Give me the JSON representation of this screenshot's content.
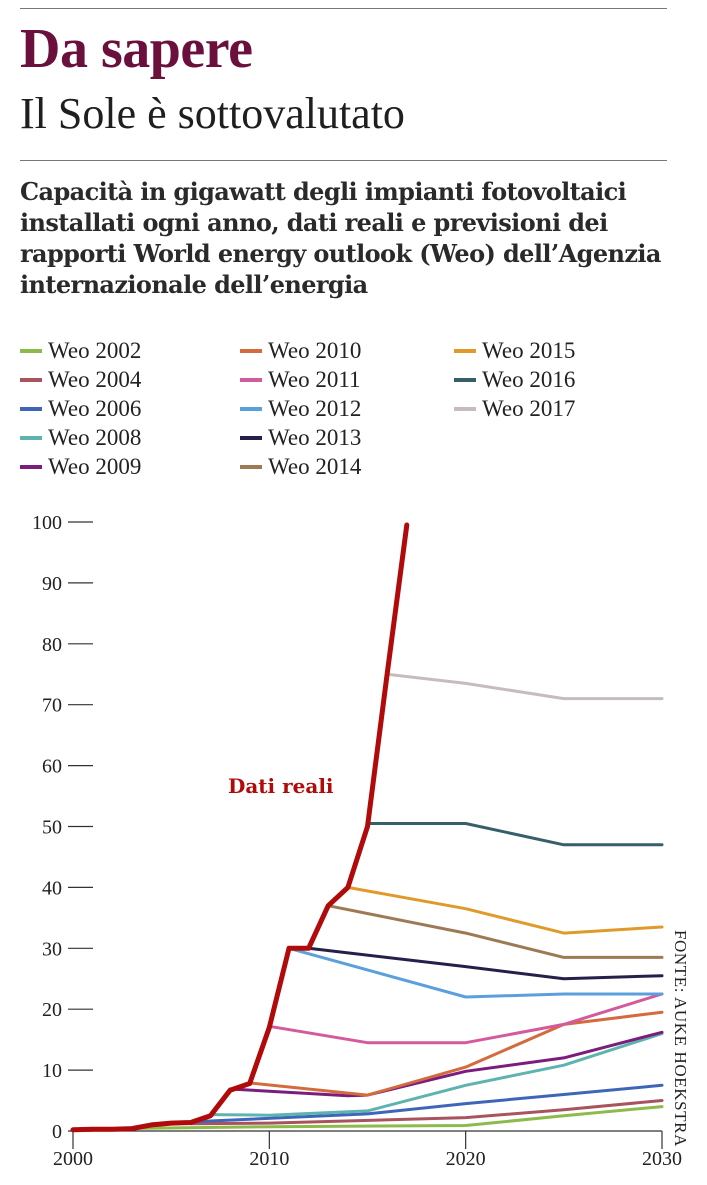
{
  "header": {
    "kicker": "Da sapere",
    "subtitle": "Il Sole è sottovalutato"
  },
  "source": "FONTE: AUKE HOEKSTRA",
  "colors": {
    "kicker": "#6b0f3c",
    "actual": "#b00a0a"
  },
  "chart_data": {
    "type": "line",
    "title": "Capacità in gigawatt degli impianti fotovoltaici installati ogni anno, dati reali e previsioni dei rapporti World energy outlook (Weo) dell’Agenzia internazionale dell’energia",
    "xlabel": "",
    "ylabel": "",
    "xlim": [
      2000,
      2030
    ],
    "ylim": [
      0,
      100
    ],
    "x_ticks": [
      2000,
      2010,
      2020,
      2030
    ],
    "y_ticks": [
      0,
      10,
      20,
      30,
      40,
      50,
      60,
      70,
      80,
      90,
      100
    ],
    "grid": false,
    "legend_position": "top",
    "annotation": "Dati reali",
    "actual": {
      "name": "Dati reali",
      "color": "#b00a0a",
      "points": [
        [
          2000,
          0.2
        ],
        [
          2001,
          0.3
        ],
        [
          2002,
          0.3
        ],
        [
          2003,
          0.4
        ],
        [
          2004,
          1.0
        ],
        [
          2005,
          1.3
        ],
        [
          2006,
          1.4
        ],
        [
          2007,
          2.5
        ],
        [
          2008,
          6.7
        ],
        [
          2009,
          7.8
        ],
        [
          2010,
          17.0
        ],
        [
          2011,
          30.0
        ],
        [
          2012,
          30.0
        ],
        [
          2013,
          37.0
        ],
        [
          2014,
          40.0
        ],
        [
          2015,
          50.0
        ],
        [
          2016,
          75.0
        ],
        [
          2017,
          99.5
        ]
      ]
    },
    "series": [
      {
        "name": "Weo 2002",
        "color": "#8dbb4b",
        "points": [
          [
            2000,
            0.3
          ],
          [
            2010,
            0.7
          ],
          [
            2020,
            0.9
          ],
          [
            2025,
            2.5
          ],
          [
            2030,
            4.0
          ]
        ]
      },
      {
        "name": "Weo 2004",
        "color": "#a9535f",
        "points": [
          [
            2006,
            1.2
          ],
          [
            2010,
            1.3
          ],
          [
            2020,
            2.2
          ],
          [
            2025,
            3.5
          ],
          [
            2030,
            5.0
          ]
        ]
      },
      {
        "name": "Weo 2006",
        "color": "#3e66b8",
        "points": [
          [
            2006,
            1.5
          ],
          [
            2015,
            2.8
          ],
          [
            2020,
            4.5
          ],
          [
            2025,
            6.0
          ],
          [
            2030,
            7.5
          ]
        ]
      },
      {
        "name": "Weo 2008",
        "color": "#5fb3ae",
        "points": [
          [
            2007,
            2.7
          ],
          [
            2010,
            2.6
          ],
          [
            2015,
            3.3
          ],
          [
            2020,
            7.5
          ],
          [
            2025,
            10.8
          ],
          [
            2030,
            16.0
          ]
        ]
      },
      {
        "name": "Weo 2009",
        "color": "#7a1d7d",
        "points": [
          [
            2008,
            6.9
          ],
          [
            2014,
            5.8
          ],
          [
            2015,
            5.9
          ],
          [
            2020,
            9.8
          ],
          [
            2025,
            12.0
          ],
          [
            2030,
            16.2
          ]
        ]
      },
      {
        "name": "Weo 2010",
        "color": "#d36b3d",
        "points": [
          [
            2009,
            7.9
          ],
          [
            2015,
            5.9
          ],
          [
            2020,
            10.5
          ],
          [
            2025,
            17.5
          ],
          [
            2030,
            19.5
          ]
        ]
      },
      {
        "name": "Weo 2011",
        "color": "#d35a9c",
        "points": [
          [
            2010,
            17.2
          ],
          [
            2015,
            14.5
          ],
          [
            2020,
            14.5
          ],
          [
            2025,
            17.5
          ],
          [
            2030,
            22.5
          ]
        ]
      },
      {
        "name": "Weo 2012",
        "color": "#5ba0dd",
        "points": [
          [
            2011,
            30.0
          ],
          [
            2020,
            22.0
          ],
          [
            2025,
            22.5
          ],
          [
            2030,
            22.5
          ]
        ]
      },
      {
        "name": "Weo 2013",
        "color": "#25204a",
        "points": [
          [
            2012,
            30.0
          ],
          [
            2020,
            27.0
          ],
          [
            2025,
            25.0
          ],
          [
            2030,
            25.5
          ]
        ]
      },
      {
        "name": "Weo 2014",
        "color": "#9c7a53",
        "points": [
          [
            2013,
            37.0
          ],
          [
            2020,
            32.5
          ],
          [
            2025,
            28.5
          ],
          [
            2030,
            28.5
          ]
        ]
      },
      {
        "name": "Weo 2015",
        "color": "#e09a2a",
        "points": [
          [
            2014,
            40.0
          ],
          [
            2020,
            36.5
          ],
          [
            2025,
            32.5
          ],
          [
            2030,
            33.5
          ]
        ]
      },
      {
        "name": "Weo 2016",
        "color": "#355f6b",
        "points": [
          [
            2015,
            50.5
          ],
          [
            2020,
            50.5
          ],
          [
            2025,
            47.0
          ],
          [
            2030,
            47.0
          ]
        ]
      },
      {
        "name": "Weo 2017",
        "color": "#c6bcbc",
        "points": [
          [
            2016,
            75.0
          ],
          [
            2020,
            73.5
          ],
          [
            2025,
            71.0
          ],
          [
            2030,
            71.0
          ]
        ]
      }
    ]
  }
}
